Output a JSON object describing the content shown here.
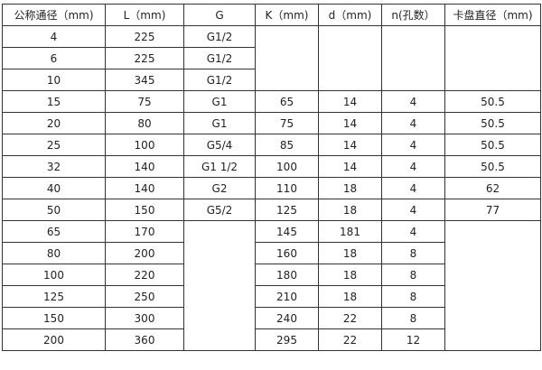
{
  "headers": [
    "公称通径（mm)",
    "L（mm)",
    "G",
    "K（mm)",
    "d（mm)",
    "n(孔数）",
    "卡盘直径（mm)"
  ],
  "rows": [
    {
      "dn": "4",
      "l": "225",
      "g": "G1/2"
    },
    {
      "dn": "6",
      "l": "225",
      "g": "G1/2"
    },
    {
      "dn": "10",
      "l": "345",
      "g": "G1/2"
    },
    {
      "dn": "15",
      "l": "75",
      "g": "G1",
      "k": "65",
      "d": "14",
      "n": "4",
      "chuck": "50.5"
    },
    {
      "dn": "20",
      "l": "80",
      "g": "G1",
      "k": "75",
      "d": "14",
      "n": "4",
      "chuck": "50.5"
    },
    {
      "dn": "25",
      "l": "100",
      "g": "G5/4",
      "k": "85",
      "d": "14",
      "n": "4",
      "chuck": "50.5"
    },
    {
      "dn": "32",
      "l": "140",
      "g": "G1  1/2",
      "k": "100",
      "d": "14",
      "n": "4",
      "chuck": "50.5"
    },
    {
      "dn": "40",
      "l": "140",
      "g": "G2",
      "k": "110",
      "d": "18",
      "n": "4",
      "chuck": "62"
    },
    {
      "dn": "50",
      "l": "150",
      "g": "G5/2",
      "k": "125",
      "d": "18",
      "n": "4",
      "chuck": "77"
    },
    {
      "dn": "65",
      "l": "170",
      "k": "145",
      "d": "181",
      "n": "4"
    },
    {
      "dn": "80",
      "l": "200",
      "k": "160",
      "d": "18",
      "n": "8"
    },
    {
      "dn": "100",
      "l": "220",
      "k": "180",
      "d": "18",
      "n": "8"
    },
    {
      "dn": "125",
      "l": "250",
      "k": "210",
      "d": "18",
      "n": "8"
    },
    {
      "dn": "150",
      "l": "300",
      "k": "240",
      "d": "22",
      "n": "8"
    },
    {
      "dn": "200",
      "l": "360",
      "k": "295",
      "d": "22",
      "n": "12"
    }
  ]
}
